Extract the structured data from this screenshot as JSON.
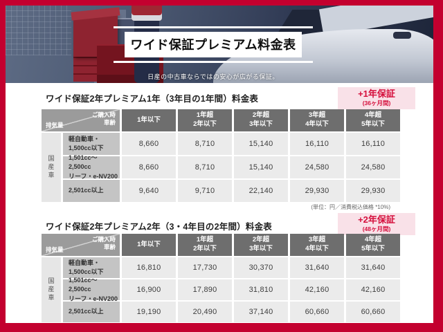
{
  "frame": {
    "border_color": "#c3002f"
  },
  "banner": {
    "title": "ワイド保証プレミアム料金表",
    "subtitle": "日産の中古車ならではの安心が広がる保証。"
  },
  "tables_common": {
    "corner": {
      "purchase_line1": "ご購入時",
      "purchase_line2": "車齢",
      "displacement": "排気量"
    },
    "col_headers": [
      {
        "l1": "1年以下",
        "l2": ""
      },
      {
        "l1": "1年超",
        "l2": "2年以下"
      },
      {
        "l1": "2年超",
        "l2": "3年以下"
      },
      {
        "l1": "3年超",
        "l2": "4年以下"
      },
      {
        "l1": "4年超",
        "l2": "5年以下"
      }
    ],
    "group_label": "国産車",
    "row_labels": [
      {
        "l1": "軽自動車・",
        "l2": "1,500cc以下"
      },
      {
        "l1": "1,501cc〜2,500cc",
        "l2": "リーフ・e-NV200"
      },
      {
        "l1": "2,501cc以上",
        "l2": ""
      }
    ]
  },
  "table1": {
    "title": "ワイド保証2年プレミアム1年（3年目の1年間）料金表",
    "badge_main": "+1年保証",
    "badge_sub": "(36ヶ月間)",
    "rows": [
      [
        "8,660",
        "8,710",
        "15,140",
        "16,110",
        "16,110"
      ],
      [
        "8,660",
        "8,710",
        "15,140",
        "24,580",
        "24,580"
      ],
      [
        "9,640",
        "9,710",
        "22,140",
        "29,930",
        "29,930"
      ]
    ],
    "note": "(単位：円／消費税込価格 *10%)"
  },
  "table2": {
    "title": "ワイド保証2年プレミアム2年（3・4年目の2年間）料金表",
    "badge_main": "+2年保証",
    "badge_sub": "(48ヶ月間)",
    "rows": [
      [
        "16,810",
        "17,730",
        "30,370",
        "31,640",
        "31,640"
      ],
      [
        "16,900",
        "17,890",
        "31,810",
        "42,160",
        "42,160"
      ],
      [
        "19,190",
        "20,490",
        "37,140",
        "60,660",
        "60,660"
      ]
    ]
  }
}
